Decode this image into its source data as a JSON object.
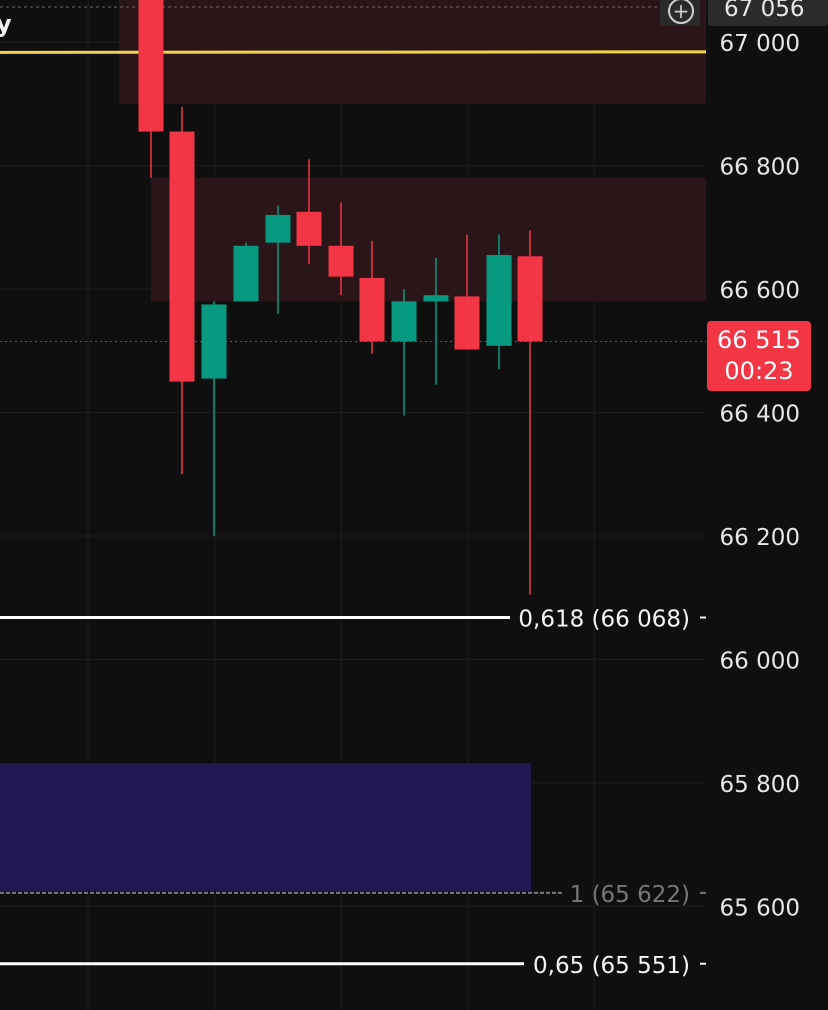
{
  "chart_data": {
    "type": "candlestick",
    "title": "",
    "xlabel": "",
    "ylabel": "",
    "ylim": [
      65555,
      67110
    ],
    "y_ticks": [
      "67 000",
      "66 800",
      "66 600",
      "66 400",
      "66 200",
      "66 000",
      "65 800",
      "65 600"
    ],
    "y_tick_values": [
      67000,
      66800,
      66600,
      66400,
      66200,
      66000,
      65800,
      65600
    ],
    "top_price_label": "67 056",
    "candles": [
      {
        "open": 67100,
        "high": 67130,
        "low": 66780,
        "close": 66855
      },
      {
        "open": 66855,
        "high": 66895,
        "low": 66300,
        "close": 66450
      },
      {
        "open": 66455,
        "high": 66580,
        "low": 66200,
        "close": 66575
      },
      {
        "open": 66580,
        "high": 66675,
        "low": 66580,
        "close": 66670
      },
      {
        "open": 66675,
        "high": 66735,
        "low": 66560,
        "close": 66720
      },
      {
        "open": 66725,
        "high": 66810,
        "low": 66640,
        "close": 66670
      },
      {
        "open": 66670,
        "high": 66740,
        "low": 66590,
        "close": 66620
      },
      {
        "open": 66618,
        "high": 66678,
        "low": 66495,
        "close": 66515
      },
      {
        "open": 66515,
        "high": 66600,
        "low": 66395,
        "close": 66580
      },
      {
        "open": 66580,
        "high": 66650,
        "low": 66445,
        "close": 66590
      },
      {
        "open": 66588,
        "high": 66688,
        "low": 66505,
        "close": 66502
      },
      {
        "open": 66508,
        "high": 66688,
        "low": 66470,
        "close": 66655
      },
      {
        "open": 66653,
        "high": 66695,
        "low": 66105,
        "close": 66515
      }
    ],
    "zones": [
      {
        "from": 66900,
        "to": 67110,
        "color": "#2a1518"
      },
      {
        "from": 66580,
        "to": 66780,
        "color": "#2a1518"
      },
      {
        "from": 65625,
        "to": 65832,
        "color": "#201852"
      }
    ],
    "trend_line": {
      "from": 66980,
      "to": 67010,
      "color": "#f2d64a"
    },
    "fib_levels": [
      {
        "label": "0,618",
        "value_label": "(66 068)",
        "value": 66068
      },
      {
        "label": "1",
        "value_label": "(65 622)",
        "value": 65622,
        "dimmed": true
      },
      {
        "label": "0,65",
        "value_label": "(65 551)",
        "value": 65551
      }
    ],
    "current_price": {
      "value": 66515,
      "label": "66 515",
      "countdown": "00:23",
      "color": "#f23645"
    },
    "colors": {
      "up": "#089981",
      "down": "#f23645",
      "background": "#0f0f0f",
      "grid": "#1c1c1c"
    }
  },
  "ui": {
    "corner_glyph": "y",
    "plus_icon": "⊕"
  }
}
